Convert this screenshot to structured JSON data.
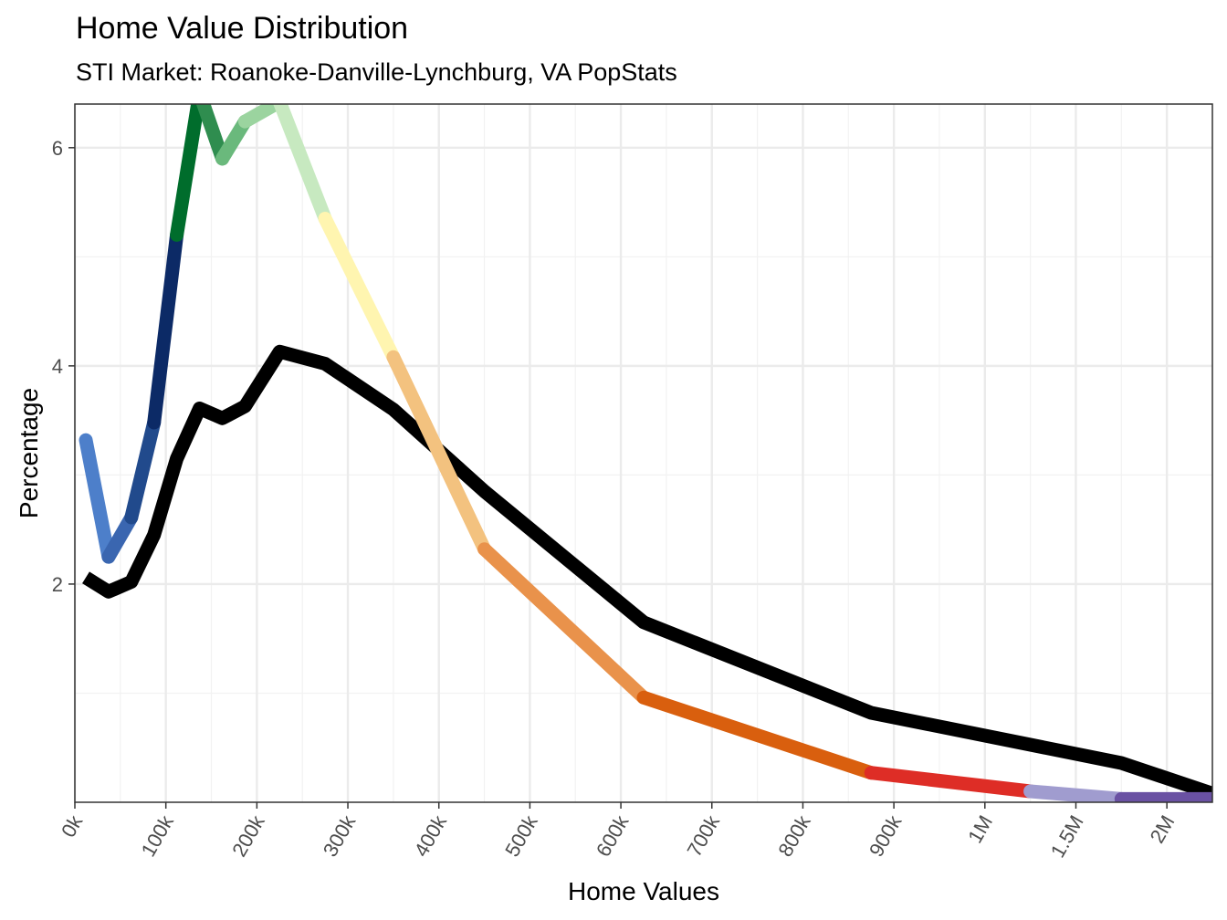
{
  "chart_data": {
    "type": "line",
    "title": "Home Value Distribution",
    "subtitle": "STI Market: Roanoke-Danville-Lynchburg, VA PopStats",
    "xlabel": "Home Values",
    "ylabel": "Percentage",
    "x_ticks": [
      "0k",
      "100k",
      "200k",
      "300k",
      "400k",
      "500k",
      "600k",
      "700k",
      "800k",
      "900k",
      "1M",
      "1.5M",
      "2M"
    ],
    "y_ticks": [
      2,
      4,
      6
    ],
    "ylim": [
      0,
      6.4
    ],
    "grid": true,
    "legend": "none",
    "series": [
      {
        "color": "#000000",
        "points": [
          [
            0.12,
            2.06
          ],
          [
            0.37,
            1.93
          ],
          [
            0.62,
            2.02
          ],
          [
            0.87,
            2.45
          ],
          [
            1.12,
            3.15
          ],
          [
            1.37,
            3.61
          ],
          [
            1.62,
            3.52
          ],
          [
            1.87,
            3.63
          ],
          [
            2.25,
            4.13
          ],
          [
            2.75,
            4.02
          ],
          [
            3.5,
            3.6
          ],
          [
            4.5,
            2.85
          ],
          [
            6.25,
            1.65
          ],
          [
            8.75,
            0.82
          ],
          [
            11.5,
            0.36
          ],
          [
            12.5,
            0.08
          ],
          [
            13.5,
            0.09
          ]
        ]
      },
      {
        "color_segments": [
          {
            "color": "#4d7fca",
            "points": [
              [
                0.12,
                3.32
              ],
              [
                0.37,
                2.25
              ]
            ]
          },
          {
            "color": "#3a66b0",
            "points": [
              [
                0.37,
                2.25
              ],
              [
                0.62,
                2.61
              ]
            ]
          },
          {
            "color": "#214a8c",
            "points": [
              [
                0.62,
                2.61
              ],
              [
                0.87,
                3.48
              ]
            ]
          },
          {
            "color": "#0c2a66",
            "points": [
              [
                0.87,
                3.48
              ],
              [
                1.12,
                5.2
              ]
            ]
          },
          {
            "color": "#006d2c",
            "points": [
              [
                1.12,
                5.2
              ],
              [
                1.37,
                6.5
              ]
            ]
          },
          {
            "color": "#2f8d4f",
            "points": [
              [
                1.37,
                6.5
              ],
              [
                1.62,
                5.9
              ]
            ]
          },
          {
            "color": "#6ab97c",
            "points": [
              [
                1.62,
                5.9
              ],
              [
                1.87,
                6.24
              ]
            ]
          },
          {
            "color": "#9bd49f",
            "points": [
              [
                1.87,
                6.24
              ],
              [
                2.25,
                6.42
              ]
            ]
          },
          {
            "color": "#c7e9c0",
            "points": [
              [
                2.25,
                6.42
              ],
              [
                2.75,
                5.35
              ]
            ]
          },
          {
            "color": "#fff5b0",
            "points": [
              [
                2.75,
                5.35
              ],
              [
                3.5,
                4.08
              ]
            ]
          },
          {
            "color": "#f3c27f",
            "points": [
              [
                3.5,
                4.08
              ],
              [
                4.5,
                2.32
              ]
            ]
          },
          {
            "color": "#e9924b",
            "points": [
              [
                4.5,
                2.32
              ],
              [
                6.25,
                0.96
              ]
            ]
          },
          {
            "color": "#d95f0e",
            "points": [
              [
                6.25,
                0.96
              ],
              [
                8.75,
                0.27
              ]
            ]
          },
          {
            "color": "#de2d26",
            "points": [
              [
                8.75,
                0.27
              ],
              [
                10.5,
                0.1
              ]
            ]
          },
          {
            "color": "#a09ccf",
            "points": [
              [
                10.5,
                0.1
              ],
              [
                11.5,
                0.03
              ]
            ]
          },
          {
            "color": "#6a51a3",
            "points": [
              [
                11.5,
                0.03
              ],
              [
                12.5,
                0.03
              ]
            ]
          }
        ]
      }
    ]
  }
}
